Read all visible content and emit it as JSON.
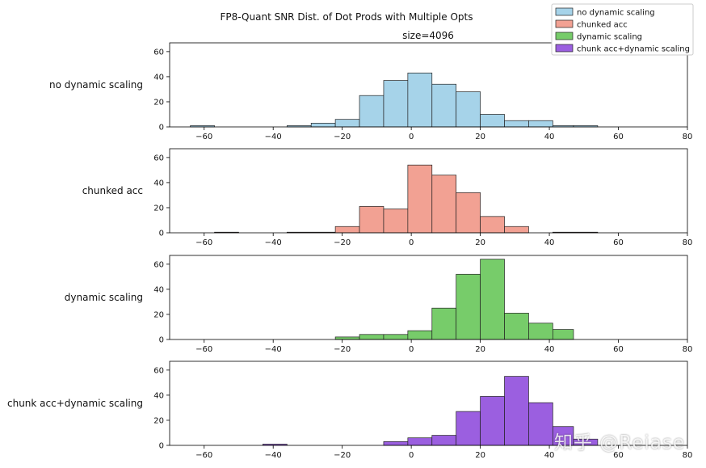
{
  "chart_data": {
    "type": "histogram",
    "title": "FP8-Quant SNR Dist. of Dot Prods with Multiple Opts",
    "subtitle": "size=4096",
    "xlim": [
      -70,
      80
    ],
    "ylim": [
      0,
      67
    ],
    "xticks": [
      -60,
      -40,
      -20,
      0,
      20,
      40,
      60,
      80
    ],
    "yticks": [
      0,
      20,
      40,
      60
    ],
    "legend_position": "top-right",
    "panels": [
      {
        "name": "no dynamic scaling",
        "color": "#a6d3e9",
        "bins": [
          {
            "x0": -64,
            "x1": -57,
            "count": 1
          },
          {
            "x0": -36,
            "x1": -29,
            "count": 1
          },
          {
            "x0": -29,
            "x1": -22,
            "count": 3
          },
          {
            "x0": -22,
            "x1": -15,
            "count": 6
          },
          {
            "x0": -15,
            "x1": -8,
            "count": 25
          },
          {
            "x0": -8,
            "x1": -1,
            "count": 37
          },
          {
            "x0": -1,
            "x1": 6,
            "count": 43
          },
          {
            "x0": 6,
            "x1": 13,
            "count": 34
          },
          {
            "x0": 13,
            "x1": 20,
            "count": 28
          },
          {
            "x0": 20,
            "x1": 27,
            "count": 10
          },
          {
            "x0": 27,
            "x1": 34,
            "count": 5
          },
          {
            "x0": 34,
            "x1": 41,
            "count": 5
          },
          {
            "x0": 41,
            "x1": 47,
            "count": 1
          },
          {
            "x0": 47,
            "x1": 54,
            "count": 1
          }
        ]
      },
      {
        "name": "chunked acc",
        "color": "#f2a193",
        "bins": [
          {
            "x0": -57,
            "x1": -50,
            "count": 0.5
          },
          {
            "x0": -36,
            "x1": -22,
            "count": 0.5
          },
          {
            "x0": -22,
            "x1": -15,
            "count": 5
          },
          {
            "x0": -15,
            "x1": -8,
            "count": 21
          },
          {
            "x0": -8,
            "x1": -1,
            "count": 19
          },
          {
            "x0": -1,
            "x1": 6,
            "count": 54
          },
          {
            "x0": 6,
            "x1": 13,
            "count": 46
          },
          {
            "x0": 13,
            "x1": 20,
            "count": 32
          },
          {
            "x0": 20,
            "x1": 27,
            "count": 13
          },
          {
            "x0": 27,
            "x1": 34,
            "count": 5
          },
          {
            "x0": 41,
            "x1": 54,
            "count": 0.5
          }
        ]
      },
      {
        "name": "dynamic scaling",
        "color": "#77cc6a",
        "bins": [
          {
            "x0": -22,
            "x1": -15,
            "count": 2
          },
          {
            "x0": -15,
            "x1": -8,
            "count": 4
          },
          {
            "x0": -8,
            "x1": -1,
            "count": 4
          },
          {
            "x0": -1,
            "x1": 6,
            "count": 7
          },
          {
            "x0": 6,
            "x1": 13,
            "count": 25
          },
          {
            "x0": 13,
            "x1": 20,
            "count": 52
          },
          {
            "x0": 20,
            "x1": 27,
            "count": 64
          },
          {
            "x0": 27,
            "x1": 34,
            "count": 21
          },
          {
            "x0": 34,
            "x1": 41,
            "count": 13
          },
          {
            "x0": 41,
            "x1": 47,
            "count": 8
          }
        ]
      },
      {
        "name": "chunk acc+dynamic scaling",
        "color": "#9b5fe0",
        "bins": [
          {
            "x0": -43,
            "x1": -36,
            "count": 1
          },
          {
            "x0": -8,
            "x1": -1,
            "count": 3
          },
          {
            "x0": -1,
            "x1": 6,
            "count": 6
          },
          {
            "x0": 6,
            "x1": 13,
            "count": 8
          },
          {
            "x0": 13,
            "x1": 20,
            "count": 27
          },
          {
            "x0": 20,
            "x1": 27,
            "count": 39
          },
          {
            "x0": 27,
            "x1": 34,
            "count": 55
          },
          {
            "x0": 34,
            "x1": 41,
            "count": 34
          },
          {
            "x0": 41,
            "x1": 47,
            "count": 15
          },
          {
            "x0": 47,
            "x1": 54,
            "count": 5
          }
        ]
      }
    ]
  },
  "watermark": "知乎 @Reiase"
}
